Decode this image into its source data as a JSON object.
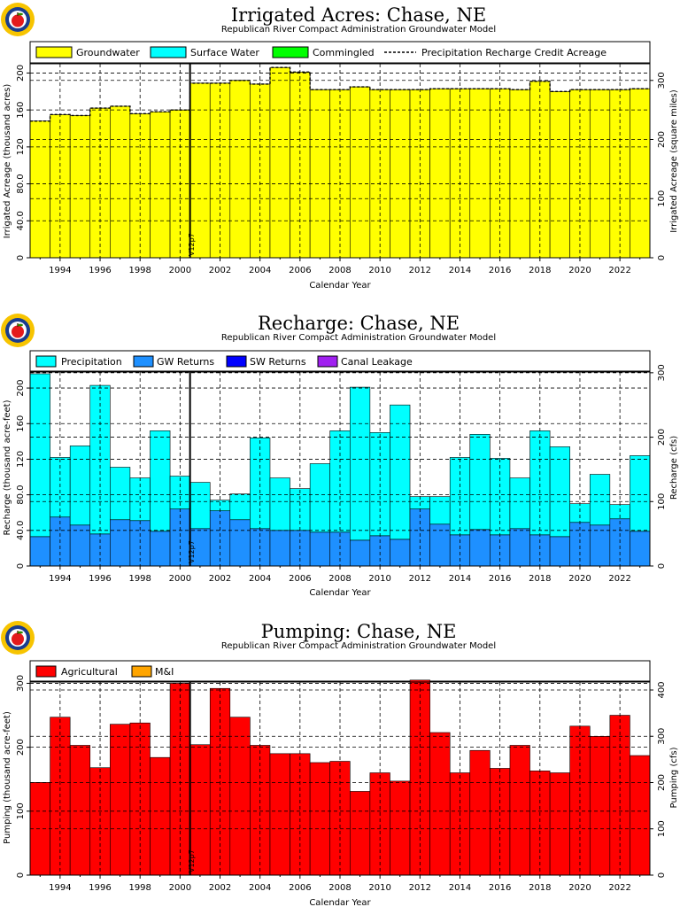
{
  "colors": {
    "groundwater": "#ffff00",
    "surface_water": "#00ffff",
    "commingled": "#00ff00",
    "precipitation": "#00ffff",
    "gw_returns": "#1e90ff",
    "sw_returns": "#0000ff",
    "canal_leakage": "#a020f0",
    "agricultural": "#ff0000",
    "mi": "#ffa500",
    "logo_outer": "#f7c400",
    "logo_ring": "#1a3d8f",
    "apple": "#e41a1c"
  },
  "chart_data": [
    {
      "id": "acres",
      "type": "bar",
      "title": "Irrigated Acres: Chase, NE",
      "subtitle": "Republican River Compact Administration Groundwater Model",
      "xlabel": "Calendar Year",
      "ylabel": "Irrigated Acreage (thousand acres)",
      "ylabel_right": "Irrigated Acreage (square miles)",
      "xlim": [
        1992.5,
        2023.5
      ],
      "ylim": [
        0,
        210
      ],
      "yticks": [
        0,
        40,
        80,
        120,
        160,
        200
      ],
      "yticklabels": [
        "0",
        "40.0",
        "80.0",
        "120",
        "160",
        "200"
      ],
      "y2factor": 1.5625,
      "y2ticks": [
        0,
        100,
        200,
        300
      ],
      "y2ticklabels": [
        "0",
        "100",
        "200",
        "300"
      ],
      "xticks": [
        1994,
        1996,
        1998,
        2000,
        2002,
        2004,
        2006,
        2008,
        2010,
        2012,
        2014,
        2016,
        2018,
        2020,
        2022
      ],
      "xticklabels": [
        "1994",
        "1996",
        "1998",
        "2000",
        "2002",
        "2004",
        "2006",
        "2008",
        "2010",
        "2012",
        "2014",
        "2016",
        "2018",
        "2020",
        "2022"
      ],
      "years": [
        1993,
        1994,
        1995,
        1996,
        1997,
        1998,
        1999,
        2000,
        2001,
        2002,
        2003,
        2004,
        2005,
        2006,
        2007,
        2008,
        2009,
        2010,
        2011,
        2012,
        2013,
        2014,
        2015,
        2016,
        2017,
        2018,
        2019,
        2020,
        2021,
        2022,
        2023
      ],
      "series": [
        {
          "name": "Groundwater",
          "color_key": "groundwater",
          "values": [
            148,
            155,
            154,
            162,
            164,
            156,
            158,
            160,
            189,
            189,
            192,
            188,
            206,
            201,
            182,
            182,
            185,
            182,
            182,
            182,
            183,
            183,
            183,
            183,
            182,
            191,
            180,
            182,
            182,
            182,
            183
          ]
        },
        {
          "name": "Surface Water",
          "color_key": "surface_water",
          "values": [
            0,
            0,
            0,
            0,
            0,
            0,
            0,
            0,
            0,
            0,
            0,
            0,
            0,
            0,
            0,
            0,
            0,
            0,
            0,
            0,
            0,
            0,
            0,
            0,
            0,
            0,
            0,
            0,
            0,
            0,
            0
          ]
        },
        {
          "name": "Commingled",
          "color_key": "commingled",
          "values": [
            0,
            0,
            0,
            0,
            0,
            0,
            0,
            0,
            0,
            0,
            0,
            0,
            0,
            0,
            0,
            0,
            0,
            0,
            0,
            0,
            0,
            0,
            0,
            0,
            0,
            0,
            0,
            0,
            0,
            0,
            0
          ]
        }
      ],
      "line": {
        "name": "Precipitation Recharge Credit Acreage",
        "values": [
          148,
          155,
          154,
          162,
          164,
          156,
          158,
          160,
          189,
          189,
          192,
          188,
          206,
          201,
          182,
          182,
          185,
          182,
          182,
          182,
          183,
          183,
          183,
          183,
          182,
          191,
          180,
          182,
          182,
          182,
          183
        ]
      },
      "legend": [
        "Groundwater",
        "Surface Water",
        "Commingled",
        "Precipitation Recharge Credit Acreage"
      ],
      "legend_placement": "top",
      "vline": {
        "x": 2000.5,
        "label": "V12p7"
      },
      "grid": true
    },
    {
      "id": "recharge",
      "type": "bar",
      "title": "Recharge: Chase, NE",
      "subtitle": "Republican River Compact Administration Groundwater Model",
      "xlabel": "Calendar Year",
      "ylabel": "Recharge (thousand acre-feet)",
      "ylabel_right": "Recharge (cfs)",
      "xlim": [
        1992.5,
        2023.5
      ],
      "ylim": [
        0,
        218
      ],
      "yticks": [
        0,
        40,
        80,
        120,
        160,
        200
      ],
      "yticklabels": [
        "0",
        "40.0",
        "80.0",
        "120",
        "160",
        "200"
      ],
      "y2factor": 1.3815,
      "y2ticks": [
        0,
        100,
        200,
        300
      ],
      "y2ticklabels": [
        "0",
        "100",
        "200",
        "300"
      ],
      "xticks": [
        1994,
        1996,
        1998,
        2000,
        2002,
        2004,
        2006,
        2008,
        2010,
        2012,
        2014,
        2016,
        2018,
        2020,
        2022
      ],
      "xticklabels": [
        "1994",
        "1996",
        "1998",
        "2000",
        "2002",
        "2004",
        "2006",
        "2008",
        "2010",
        "2012",
        "2014",
        "2016",
        "2018",
        "2020",
        "2022"
      ],
      "years": [
        1993,
        1994,
        1995,
        1996,
        1997,
        1998,
        1999,
        2000,
        2001,
        2002,
        2003,
        2004,
        2005,
        2006,
        2007,
        2008,
        2009,
        2010,
        2011,
        2012,
        2013,
        2014,
        2015,
        2016,
        2017,
        2018,
        2019,
        2020,
        2021,
        2022,
        2023
      ],
      "series": [
        {
          "name": "GW Returns",
          "color_key": "gw_returns",
          "values": [
            33,
            55,
            46,
            36,
            52,
            51,
            39,
            64,
            42,
            62,
            52,
            42,
            40,
            40,
            38,
            38,
            29,
            34,
            30,
            64,
            47,
            35,
            41,
            35,
            42,
            35,
            33,
            49,
            46,
            53,
            39
          ]
        },
        {
          "name": "SW Returns",
          "color_key": "sw_returns",
          "values": [
            0,
            0,
            0,
            0,
            0,
            0,
            0,
            0,
            0,
            0,
            0,
            0,
            0,
            0,
            0,
            0,
            0,
            0,
            0,
            0,
            0,
            0,
            0,
            0,
            0,
            0,
            0,
            0,
            0,
            0,
            0
          ]
        },
        {
          "name": "Canal Leakage",
          "color_key": "canal_leakage",
          "values": [
            0,
            0,
            0,
            0,
            0,
            0,
            0,
            0,
            0,
            0,
            0,
            0,
            0,
            0,
            0,
            0,
            0,
            0,
            0,
            0,
            0,
            0,
            0,
            0,
            0,
            0,
            0,
            0,
            0,
            0,
            0
          ]
        },
        {
          "name": "Precipitation",
          "color_key": "precipitation",
          "values": [
            183,
            67,
            89,
            167,
            59,
            48,
            113,
            37,
            52,
            12,
            29,
            102,
            59,
            47,
            77,
            114,
            172,
            116,
            151,
            14,
            31,
            87,
            107,
            86,
            57,
            117,
            101,
            21,
            57,
            16,
            85
          ]
        }
      ],
      "legend": [
        "Precipitation",
        "GW Returns",
        "SW Returns",
        "Canal Leakage"
      ],
      "legend_placement": "top",
      "vline": {
        "x": 2000.5,
        "label": "V12p7"
      },
      "grid": true
    },
    {
      "id": "pumping",
      "type": "bar",
      "title": "Pumping: Chase, NE",
      "subtitle": "Republican River Compact Administration Groundwater Model",
      "xlabel": "Calendar Year",
      "ylabel": "Pumping (thousand acre-feet)",
      "ylabel_right": "Pumping (cfs)",
      "xlim": [
        1992.5,
        2023.5
      ],
      "ylim": [
        0,
        302
      ],
      "yticks": [
        0,
        100,
        200,
        300
      ],
      "yticklabels": [
        "0",
        "100",
        "200",
        "300"
      ],
      "y2factor": 1.3815,
      "y2ticks": [
        0,
        100,
        200,
        300,
        400
      ],
      "y2ticklabels": [
        "0",
        "100",
        "200",
        "300",
        "400"
      ],
      "xticks": [
        1994,
        1996,
        1998,
        2000,
        2002,
        2004,
        2006,
        2008,
        2010,
        2012,
        2014,
        2016,
        2018,
        2020,
        2022
      ],
      "xticklabels": [
        "1994",
        "1996",
        "1998",
        "2000",
        "2002",
        "2004",
        "2006",
        "2008",
        "2010",
        "2012",
        "2014",
        "2016",
        "2018",
        "2020",
        "2022"
      ],
      "years": [
        1993,
        1994,
        1995,
        1996,
        1997,
        1998,
        1999,
        2000,
        2001,
        2002,
        2003,
        2004,
        2005,
        2006,
        2007,
        2008,
        2009,
        2010,
        2011,
        2012,
        2013,
        2014,
        2015,
        2016,
        2017,
        2018,
        2019,
        2020,
        2021,
        2022,
        2023
      ],
      "series": [
        {
          "name": "Agricultural",
          "color_key": "agricultural",
          "values": [
            145,
            247,
            203,
            168,
            236,
            238,
            184,
            300,
            204,
            292,
            247,
            203,
            190,
            190,
            176,
            178,
            131,
            160,
            147,
            305,
            223,
            160,
            195,
            167,
            203,
            163,
            160,
            233,
            217,
            250,
            187
          ]
        },
        {
          "name": "M&I",
          "color_key": "mi",
          "values": [
            0,
            0,
            0,
            0,
            0,
            0,
            0,
            0,
            0,
            0,
            0,
            0,
            0,
            0,
            0,
            0,
            0,
            0,
            0,
            0,
            0,
            0,
            0,
            0,
            0,
            0,
            0,
            0,
            0,
            0,
            0
          ]
        }
      ],
      "legend": [
        "Agricultural",
        "M&I"
      ],
      "legend_placement": "top",
      "vline": {
        "x": 2000.5,
        "label": "V12p7"
      },
      "grid": true
    }
  ]
}
